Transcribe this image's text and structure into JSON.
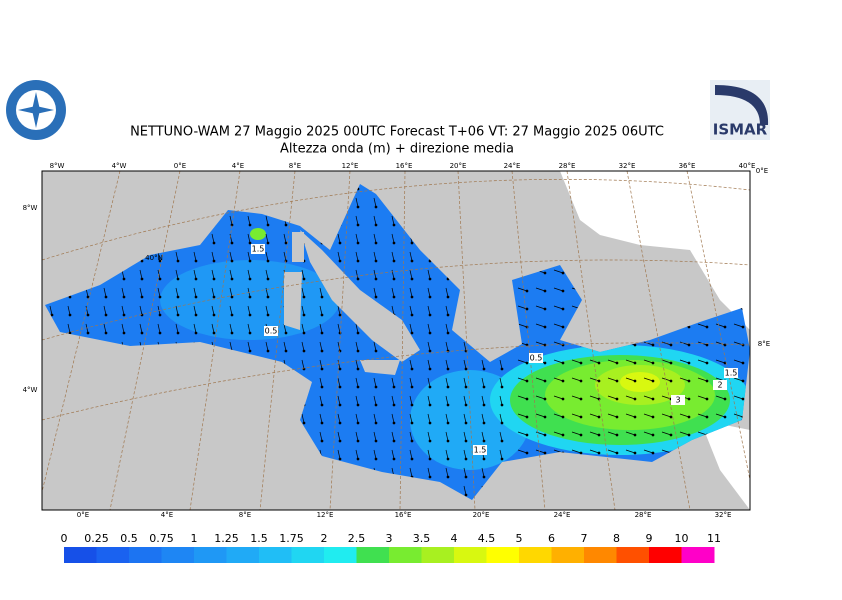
{
  "header": {
    "title": "NETTUNO-WAM  27   Maggio  2025 00UTC Forecast T+06 VT: 27   Maggio  2025 06UTC",
    "subtitle": "Altezza onda (m) + direzione media",
    "logo": "ISMAR"
  },
  "graticule": {
    "top": [
      "8°W",
      "4°W",
      "0°E",
      "4°E",
      "8°E",
      "12°E",
      "16°E",
      "20°E",
      "24°E",
      "28°E",
      "32°E",
      "36°E",
      "40°E"
    ],
    "bottom": [
      "0°E",
      "4°E",
      "8°E",
      "12°E",
      "16°E",
      "20°E",
      "24°E",
      "28°E",
      "32°E"
    ],
    "left": [
      "8°W",
      "4°W"
    ],
    "inner": [
      "40°N"
    ],
    "right": [
      "0°E",
      "8°E"
    ]
  },
  "contour_labels": [
    "1.5",
    "0.5",
    "0.5",
    "1.5",
    "3",
    "2",
    "1.5"
  ],
  "colorbar": {
    "levels": [
      0,
      0.25,
      0.5,
      0.75,
      1,
      1.25,
      1.5,
      1.75,
      2,
      2.5,
      3,
      3.5,
      4,
      4.5,
      5,
      6,
      7,
      8,
      9,
      10,
      11
    ],
    "colors": [
      "#1650e8",
      "#1a62f0",
      "#1c74f2",
      "#1e86f4",
      "#1f98f5",
      "#20aaf6",
      "#20bef6",
      "#20d6f2",
      "#20ecf0",
      "#40e050",
      "#78ec30",
      "#a8f020",
      "#d8f810",
      "#ffff00",
      "#ffd800",
      "#ffb000",
      "#ff8800",
      "#ff5000",
      "#ff0000",
      "#ff00c8"
    ]
  }
}
